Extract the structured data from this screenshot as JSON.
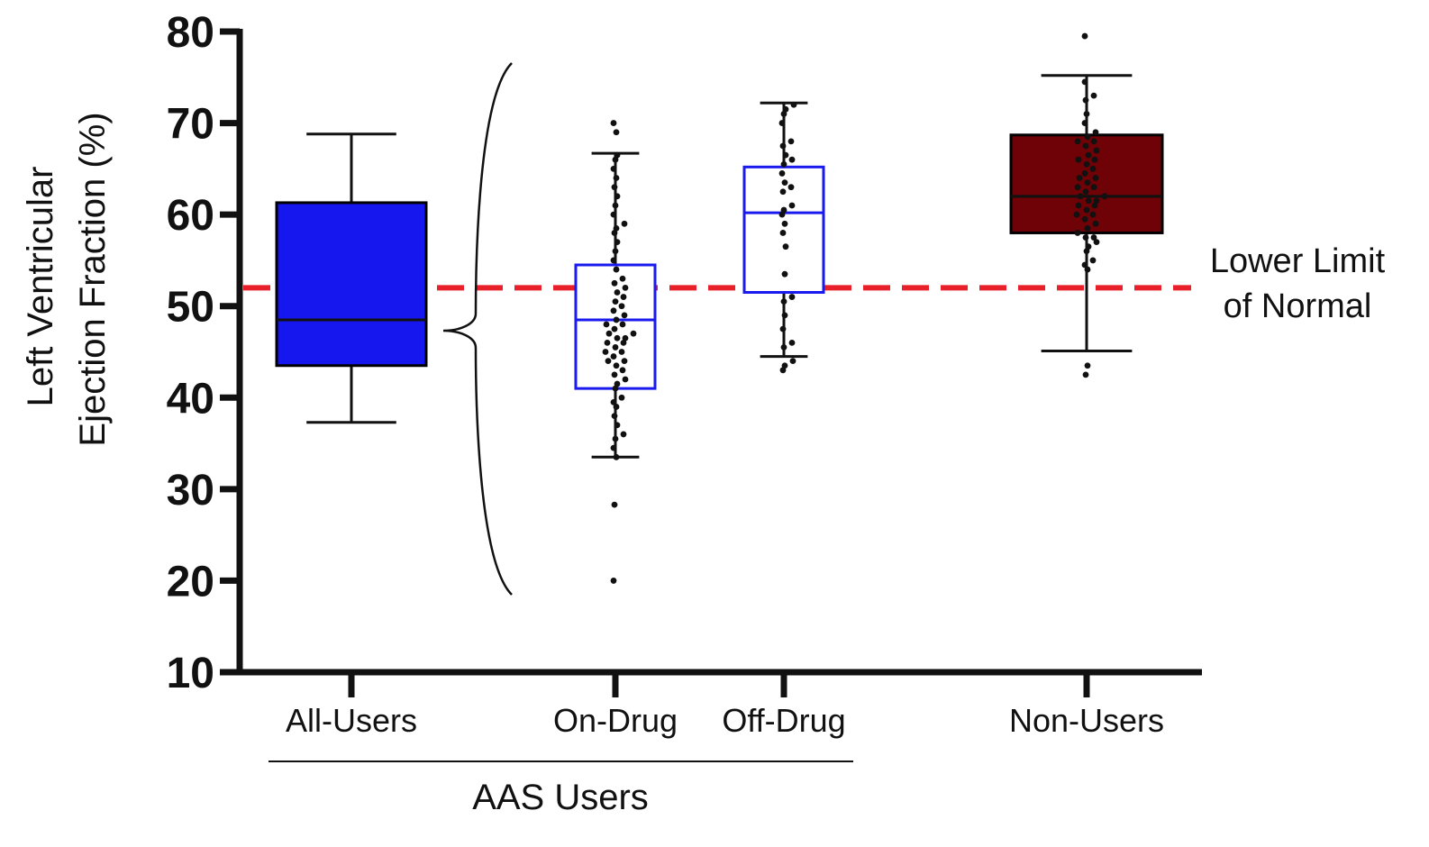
{
  "chart_data": {
    "type": "box",
    "ylabel_line1": "Left Ventricular",
    "ylabel_line2": "Ejection Fraction  (%)",
    "ylim": [
      10,
      80
    ],
    "yticks": [
      10,
      20,
      30,
      40,
      50,
      60,
      70,
      80
    ],
    "group_label": "AAS Users",
    "reference_line": {
      "value": 52,
      "label_line1": "Lower Limit",
      "label_line2": "of   Normal",
      "color": "#e8202a"
    },
    "categories": [
      "All-Users",
      "On-Drug",
      "Off-Drug",
      "Non-Users"
    ],
    "boxes": [
      {
        "name": "All-Users",
        "whisker_low": 37.3,
        "q1": 43.5,
        "median": 48.5,
        "q3": 61.3,
        "whisker_high": 68.8,
        "fill": "#1616ee",
        "stroke": "#000000",
        "points": []
      },
      {
        "name": "On-Drug",
        "whisker_low": 33.5,
        "q1": 41,
        "median": 48.5,
        "q3": 54.5,
        "whisker_high": 66.7,
        "fill": "#ffffff",
        "stroke": "#1a1aee",
        "points": [
          20,
          28.3,
          33.5,
          34.5,
          35.5,
          36,
          37,
          38,
          39,
          39.5,
          40,
          41,
          41.5,
          42,
          42.5,
          43,
          43.5,
          44,
          44,
          44.5,
          45,
          45,
          45.5,
          46,
          46,
          46.5,
          46.5,
          47,
          47,
          47.5,
          48,
          48,
          48.5,
          49,
          49.5,
          50,
          50.5,
          51,
          51.5,
          52,
          52.5,
          53,
          54,
          55,
          56,
          57,
          58,
          58.5,
          59,
          60,
          61,
          62,
          63,
          64,
          65,
          66,
          66.5,
          69,
          70
        ]
      },
      {
        "name": "Off-Drug",
        "whisker_low": 44.5,
        "q1": 51.5,
        "median": 60.2,
        "q3": 65.2,
        "whisker_high": 72.2,
        "fill": "#ffffff",
        "stroke": "#1a1aee",
        "points": [
          43,
          43.5,
          44,
          45.5,
          46,
          47.5,
          49,
          50.5,
          51,
          53.5,
          56.5,
          58,
          59,
          60,
          60.5,
          61,
          62.5,
          63,
          63.5,
          64.5,
          65.5,
          66,
          66.5,
          67.5,
          68,
          70,
          71,
          71.5,
          72
        ]
      },
      {
        "name": "Non-Users",
        "whisker_low": 45.1,
        "q1": 58,
        "median": 62,
        "q3": 68.7,
        "whisker_high": 75.2,
        "fill": "#6e0206",
        "stroke": "#000000",
        "points": [
          42.5,
          43.5,
          54,
          54.5,
          55,
          56,
          56.5,
          57,
          57.5,
          57.5,
          58,
          58.5,
          59,
          59.5,
          60,
          60,
          60.5,
          61,
          61,
          61.5,
          61.5,
          62,
          62,
          62.5,
          63,
          63,
          63.5,
          64,
          64,
          64.5,
          65,
          65.5,
          66,
          66,
          66.5,
          67,
          67.5,
          68,
          68,
          68.5,
          69,
          70,
          71,
          72.5,
          73,
          74.5,
          79.5
        ]
      }
    ]
  }
}
